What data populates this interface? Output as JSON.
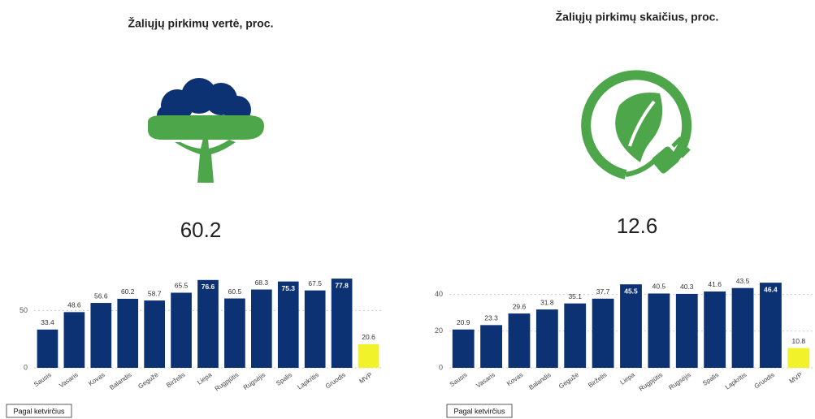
{
  "chart_data": [
    {
      "type": "bar",
      "title": "Žaliųjų pirkimų vertė, proc.",
      "kpi": 60.2,
      "button": "Pagal ketvirčius",
      "categories": [
        "Sausis",
        "Vasaris",
        "Kovas",
        "Balandis",
        "Gegužė",
        "Birželis",
        "Liepa",
        "Rugpjūtis",
        "Rugsėjis",
        "Spalis",
        "Lapkritis",
        "Gruodis",
        "MVP"
      ],
      "values": [
        33.4,
        48.6,
        56.6,
        60.2,
        58.7,
        65.5,
        76.6,
        60.5,
        68.3,
        75.3,
        67.5,
        77.8,
        20.6
      ],
      "colors": [
        "#0d3274",
        "#0d3274",
        "#0d3274",
        "#0d3274",
        "#0d3274",
        "#0d3274",
        "#0d3274",
        "#0d3274",
        "#0d3274",
        "#0d3274",
        "#0d3274",
        "#0d3274",
        "#f2f22a"
      ],
      "ylim": [
        0,
        80
      ],
      "yticks": [
        0,
        50
      ],
      "grid": true
    },
    {
      "type": "bar",
      "title": "Žaliųjų pirkimų skaičius, proc.",
      "kpi": 12.6,
      "button": "Pagal ketvirčius",
      "categories": [
        "Sausis",
        "Vasaris",
        "Kovas",
        "Balandis",
        "Gegužė",
        "Birželis",
        "Liepa",
        "Rugpjūtis",
        "Rugsėjis",
        "Spalis",
        "Lapkritis",
        "Gruodis",
        "MVP"
      ],
      "values": [
        20.9,
        23.3,
        29.6,
        31.8,
        35.1,
        37.7,
        45.5,
        40.5,
        40.3,
        41.6,
        43.5,
        46.4,
        10.8
      ],
      "colors": [
        "#0d3274",
        "#0d3274",
        "#0d3274",
        "#0d3274",
        "#0d3274",
        "#0d3274",
        "#0d3274",
        "#0d3274",
        "#0d3274",
        "#0d3274",
        "#0d3274",
        "#0d3274",
        "#f2f22a"
      ],
      "ylim": [
        0,
        50
      ],
      "yticks": [
        0,
        20,
        40
      ],
      "grid": true
    }
  ]
}
